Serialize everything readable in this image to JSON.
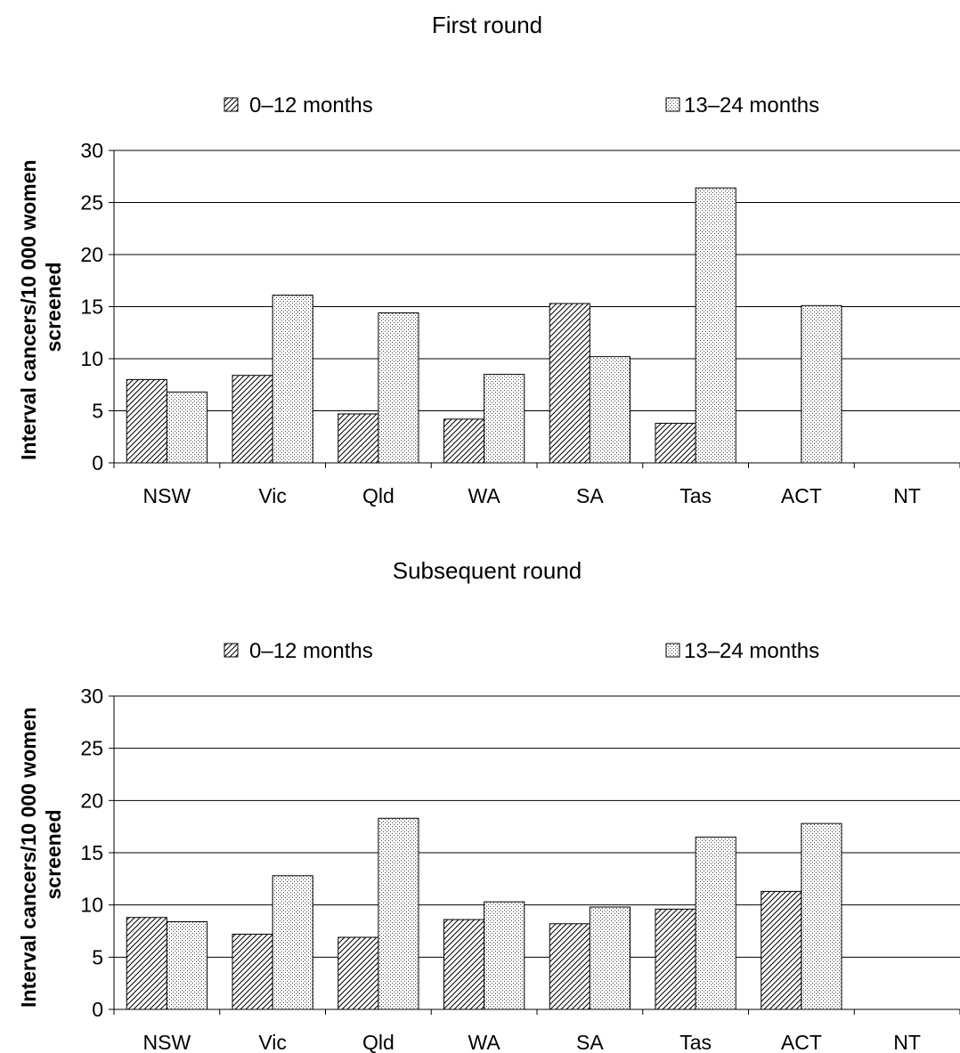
{
  "chart_data": [
    {
      "type": "bar",
      "title": "First round",
      "ylabel": "Interval cancers/10 000 women screened",
      "ylabel_lines": [
        "Interval cancers/10 000 women",
        "screened"
      ],
      "xlabel": "",
      "categories": [
        "NSW",
        "Vic",
        "Qld",
        "WA",
        "SA",
        "Tas",
        "ACT",
        "NT"
      ],
      "series": [
        {
          "name": "0–12 months",
          "values": [
            8.0,
            8.4,
            4.7,
            4.2,
            15.3,
            3.8,
            0,
            0
          ],
          "pattern": "hatch"
        },
        {
          "name": "13–24 months",
          "values": [
            6.8,
            16.1,
            14.4,
            8.5,
            10.2,
            26.4,
            15.1,
            0
          ],
          "pattern": "dots"
        }
      ],
      "ylim": [
        0,
        30
      ],
      "yticks": [
        0,
        5,
        10,
        15,
        20,
        25,
        30
      ],
      "grid": true,
      "legend": "top"
    },
    {
      "type": "bar",
      "title": "Subsequent round",
      "ylabel": "Interval cancers/10 000 women screened",
      "ylabel_lines": [
        "Interval cancers/10 000 women",
        "screened"
      ],
      "xlabel": "",
      "categories": [
        "NSW",
        "Vic",
        "Qld",
        "WA",
        "SA",
        "Tas",
        "ACT",
        "NT"
      ],
      "series": [
        {
          "name": "0–12 months",
          "values": [
            8.8,
            7.2,
            6.9,
            8.6,
            8.2,
            9.6,
            11.3,
            0
          ],
          "pattern": "hatch"
        },
        {
          "name": "13–24 months",
          "values": [
            8.4,
            12.8,
            18.3,
            10.3,
            9.8,
            16.5,
            17.8,
            0
          ],
          "pattern": "dots"
        }
      ],
      "ylim": [
        0,
        30
      ],
      "yticks": [
        0,
        5,
        10,
        15,
        20,
        25,
        30
      ],
      "grid": true,
      "legend": "top"
    }
  ],
  "colors": {
    "bar_stroke": "#000000",
    "grid": "#000000",
    "background": "#ffffff"
  }
}
